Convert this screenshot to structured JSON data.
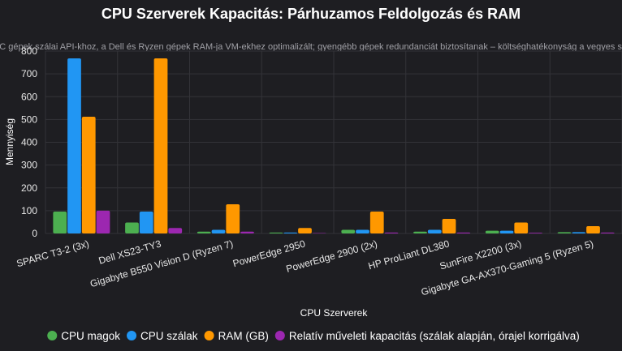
{
  "chart_data": {
    "type": "bar",
    "title": "CPU Szerverek Kapacitás: Párhuzamos Feldolgozás és RAM",
    "subtitle": "A SPARC gépek szálai API-khoz, a Dell és Ryzen gépek RAM-ja VM-ekhez optimalizált; gyengébb gépek redundanciát biztosítanak – költséghatékonyság a vegyes setupban",
    "xlabel": "CPU Szerverek",
    "ylabel": "Mennyiség",
    "ylim": [
      0,
      800
    ],
    "yticks": [
      0,
      100,
      200,
      300,
      400,
      500,
      600,
      700,
      800
    ],
    "grid": true,
    "legend_position": "bottom",
    "categories": [
      "SPARC T3-2 (3x)",
      "Dell XS23-TY3",
      "Gigabyte B550 Vision D (Ryzen 7)",
      "PowerEdge 2950",
      "PowerEdge 2900 (2x)",
      "HP ProLiant DL380",
      "SunFire X2200 (3x)",
      "Gigabyte GA-AX370-Gaming 5 (Ryzen 5)"
    ],
    "series": [
      {
        "name": "CPU magok",
        "color": "#4caf50",
        "values": [
          96,
          48,
          8,
          4,
          16,
          8,
          12,
          6
        ]
      },
      {
        "name": "CPU szálak",
        "color": "#2196f3",
        "values": [
          768,
          96,
          16,
          4,
          16,
          16,
          12,
          6
        ]
      },
      {
        "name": "RAM (GB)",
        "color": "#ff9800",
        "values": [
          512,
          768,
          128,
          24,
          96,
          64,
          48,
          32
        ]
      },
      {
        "name": "Relatív műveleti kapacitás (szálak alapján, órajel korrigálva)",
        "color": "#9c27b0",
        "values": [
          100,
          24,
          8,
          2,
          4,
          4,
          3,
          4
        ]
      }
    ]
  }
}
